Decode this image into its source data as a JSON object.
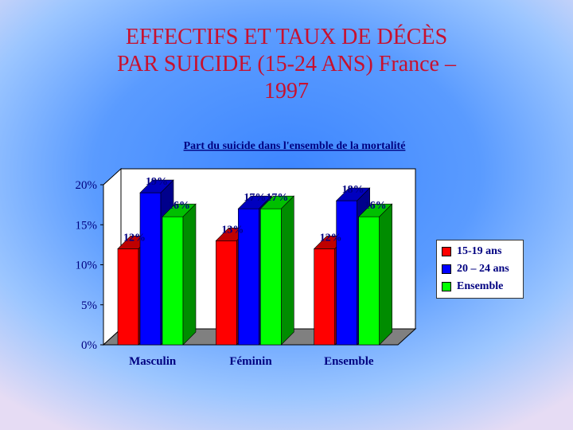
{
  "slide": {
    "title_lines": [
      "EFFECTIFS ET TAUX DE DÉCÈS",
      "PAR SUICIDE (15-24 ANS) France –",
      "1997"
    ]
  },
  "chart_data": {
    "type": "bar",
    "title": "Part du suicide dans l'ensemble de la mortalité",
    "categories": [
      "Masculin",
      "Féminin",
      "Ensemble"
    ],
    "series": [
      {
        "name": "15-19 ans",
        "color": "#ff0000",
        "values": [
          12,
          13,
          12
        ],
        "labels": [
          "12%",
          "13%",
          "12%"
        ]
      },
      {
        "name": "20 – 24 ans",
        "color": "#0000ff",
        "values": [
          19,
          17,
          18
        ],
        "labels": [
          "19%",
          "17%",
          "18%"
        ]
      },
      {
        "name": "Ensemble",
        "color": "#00ff00",
        "values": [
          16,
          17,
          16
        ],
        "labels": [
          "16%",
          "17%",
          "16%"
        ]
      }
    ],
    "y_ticks": [
      0,
      5,
      10,
      15,
      20
    ],
    "y_tick_labels": [
      "0%",
      "5%",
      "10%",
      "15%",
      "20%"
    ],
    "ylim": [
      0,
      20
    ],
    "grid": false,
    "legend_position": "right",
    "bar_style": "3d"
  }
}
